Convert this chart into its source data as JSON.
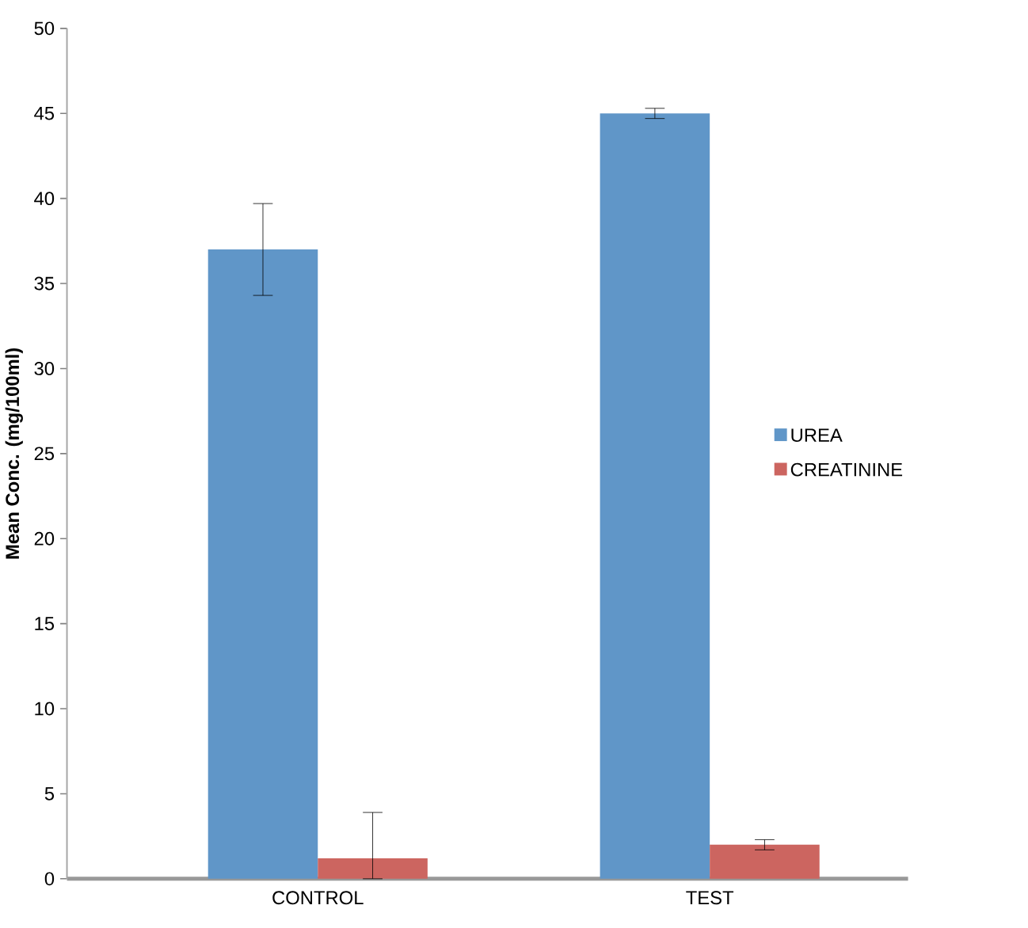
{
  "chart_data": {
    "type": "bar",
    "ylabel": "Mean Conc. (mg/100ml)",
    "categories": [
      "CONTROL",
      "TEST"
    ],
    "series": [
      {
        "name": "UREA",
        "color": "#6096c8",
        "values": [
          37,
          45
        ],
        "errors": [
          2.7,
          0.3
        ]
      },
      {
        "name": "CREATININE",
        "color": "#cc6560",
        "values": [
          1.2,
          2.0
        ],
        "errors": [
          [
            0,
            3.9
          ],
          0.3
        ]
      }
    ],
    "ylim": [
      0,
      50
    ],
    "yticks": [
      0,
      5,
      10,
      15,
      20,
      25,
      30,
      35,
      40,
      45,
      50
    ],
    "grid": false,
    "legend": "right"
  }
}
